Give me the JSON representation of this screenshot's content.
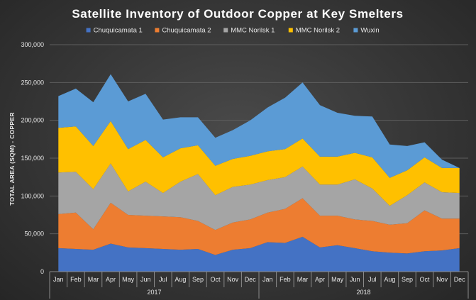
{
  "chart_data": {
    "type": "area",
    "stacked": true,
    "title": "Satellite Inventory of Outdoor Copper at Key Smelters",
    "ylabel": "TOTAL AREA (SQM) - COPPER",
    "xlabel": "",
    "ylim": [
      0,
      300000
    ],
    "yticks": [
      0,
      50000,
      100000,
      150000,
      200000,
      250000,
      300000
    ],
    "ytick_labels": [
      "0",
      "50,000",
      "100,000",
      "150,000",
      "200,000",
      "250,000",
      "300,000"
    ],
    "grid": true,
    "legend_position": "top",
    "categories": [
      "Jan",
      "Feb",
      "Mar",
      "Apr",
      "May",
      "Jun",
      "Jul",
      "Aug",
      "Sep",
      "Oct",
      "Nov",
      "Dec",
      "Jan",
      "Feb",
      "Mar",
      "Apr",
      "May",
      "Jun",
      "Jul",
      "Aug",
      "Sep",
      "Oct",
      "Nov",
      "Dec"
    ],
    "year_groups": [
      {
        "label": "2017",
        "start": 0,
        "end": 11
      },
      {
        "label": "2018",
        "start": 12,
        "end": 23
      }
    ],
    "series": [
      {
        "name": "Chuquicamata 1",
        "color": "#4472c4",
        "values": [
          31000,
          30000,
          29000,
          37000,
          32000,
          31000,
          30000,
          29000,
          30000,
          22000,
          29000,
          31000,
          39000,
          38000,
          46000,
          32000,
          35000,
          31000,
          27000,
          25000,
          24000,
          27000,
          28000,
          31000
        ]
      },
      {
        "name": "Chuquicamata 2",
        "color": "#ed7d31",
        "values": [
          45000,
          48000,
          27000,
          54000,
          43000,
          43000,
          43000,
          43000,
          37000,
          33000,
          36000,
          38000,
          39000,
          45000,
          51000,
          42000,
          39000,
          38000,
          40000,
          37000,
          40000,
          54000,
          42000,
          39000
        ]
      },
      {
        "name": "MMC Norilsk 1",
        "color": "#a5a5a5",
        "values": [
          55000,
          54000,
          53000,
          52000,
          31000,
          45000,
          31000,
          47000,
          62000,
          46000,
          47000,
          46000,
          43000,
          42000,
          42000,
          41000,
          41000,
          53000,
          43000,
          25000,
          37000,
          37000,
          35000,
          34000
        ]
      },
      {
        "name": "MMC Norilsk 2",
        "color": "#ffc000",
        "values": [
          59000,
          60000,
          57000,
          56000,
          56000,
          55000,
          47000,
          44000,
          38000,
          39000,
          37000,
          38000,
          38000,
          37000,
          37000,
          37000,
          37000,
          35000,
          41000,
          37000,
          33000,
          33000,
          32000,
          33000
        ]
      },
      {
        "name": "Wuxin",
        "color": "#5b9bd5",
        "values": [
          42000,
          50000,
          58000,
          62000,
          63000,
          61000,
          50000,
          41000,
          37000,
          37000,
          38000,
          47000,
          58000,
          68000,
          74000,
          68000,
          58000,
          49000,
          54000,
          44000,
          32000,
          20000,
          11000,
          0
        ]
      }
    ]
  }
}
